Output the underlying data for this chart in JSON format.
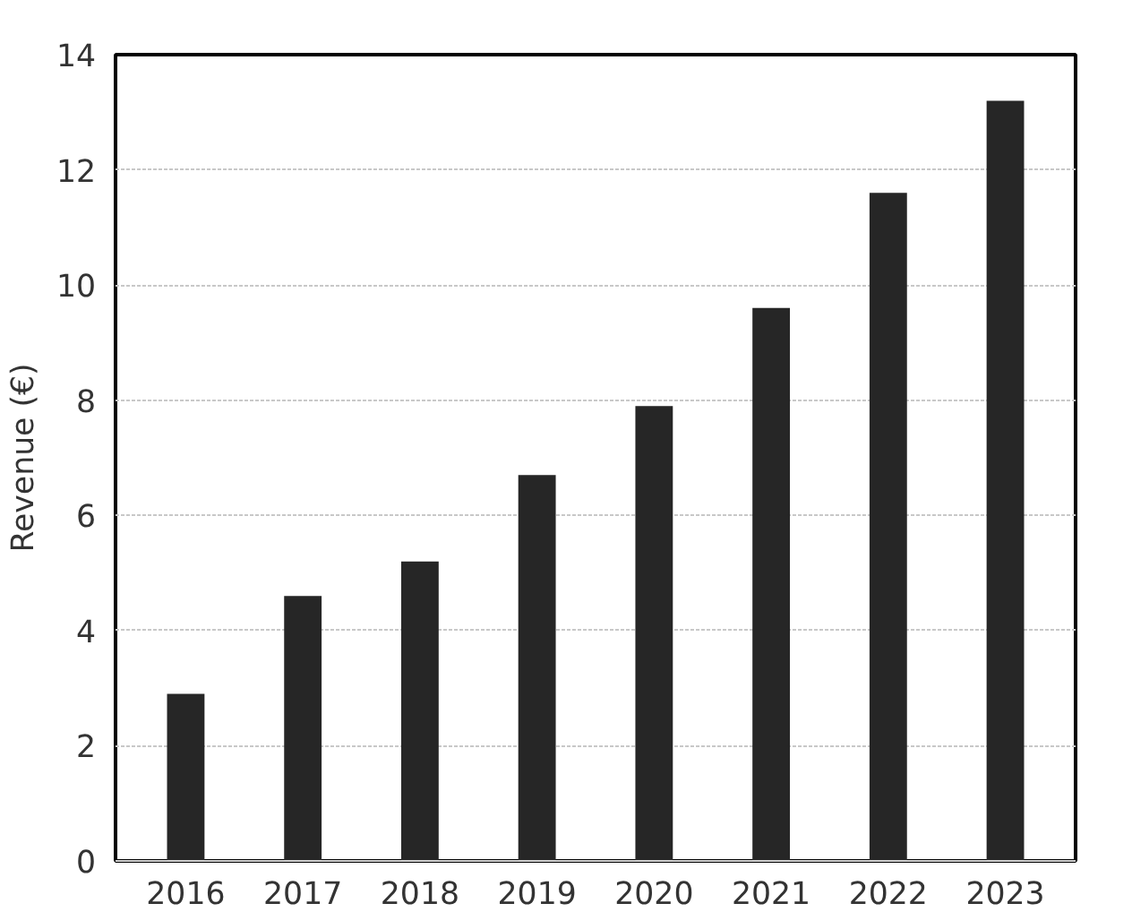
{
  "chart_data": {
    "type": "bar",
    "ylabel": "Revenue (€)",
    "categories": [
      "2016",
      "2017",
      "2018",
      "2019",
      "2020",
      "2021",
      "2022",
      "2023"
    ],
    "values": [
      2.9,
      4.6,
      5.2,
      6.7,
      7.9,
      9.6,
      11.6,
      13.2
    ],
    "color": "#262626",
    "ylim": [
      0,
      14
    ],
    "yticks": [
      0,
      2,
      4,
      6,
      8,
      10,
      12,
      14
    ],
    "grid": "y"
  }
}
